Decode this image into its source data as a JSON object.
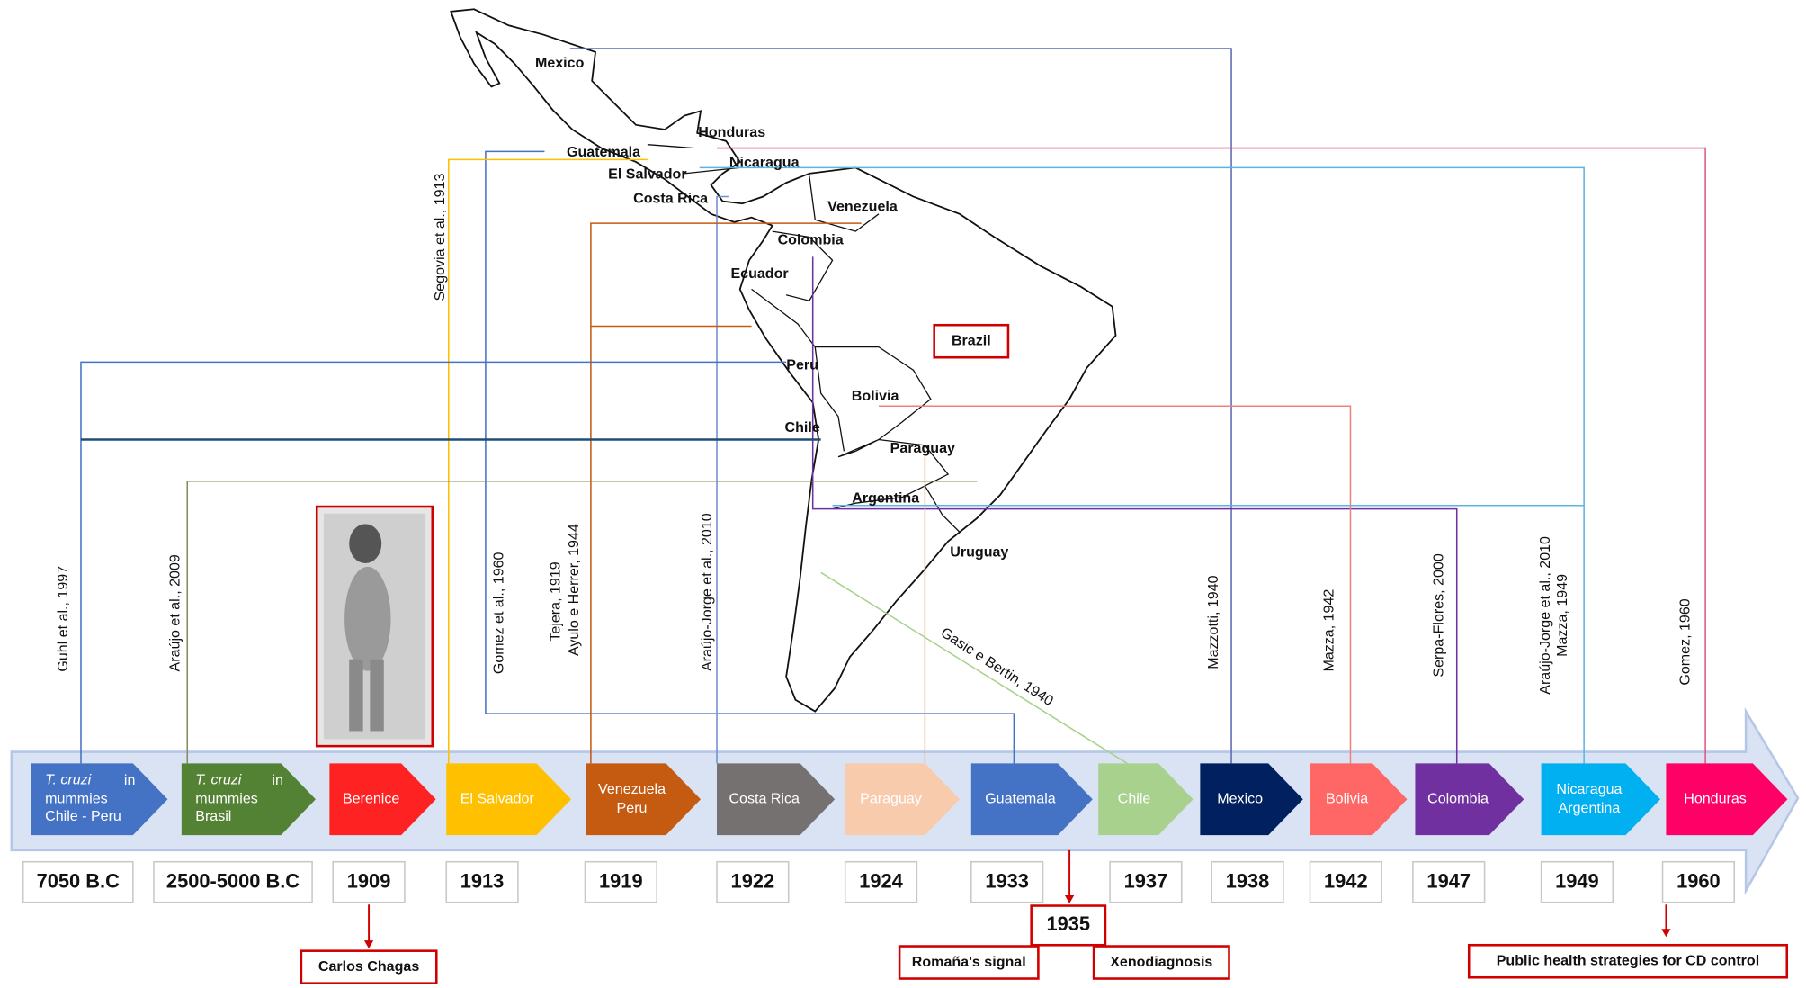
{
  "countries": [
    "Mexico",
    "Honduras",
    "Guatemala",
    "Nicaragua",
    "El Salvador",
    "Costa Rica",
    "Venezuela",
    "Colombia",
    "Ecuador",
    "Brazil",
    "Peru",
    "Bolivia",
    "Chile",
    "Paraguay",
    "Argentina",
    "Uruguay"
  ],
  "events": [
    {
      "organism": "T. cruzi",
      "label": [
        "in",
        "mummies",
        "Chile - Peru"
      ],
      "year": "7050 B.C",
      "citations": [
        "Guhl et al., 1997"
      ],
      "color": "#4472c4"
    },
    {
      "organism": "T. cruzi",
      "label": [
        "in",
        "mummies",
        "Brasil"
      ],
      "year": "2500-5000 B.C",
      "citations": [
        "Araújo et al., 2009"
      ],
      "color": "#548235"
    },
    {
      "label": [
        "Berenice"
      ],
      "year": "1909",
      "citations": [],
      "color": "#ff2222",
      "note": "Carlos Chagas"
    },
    {
      "label": [
        "El Salvador"
      ],
      "year": "1913",
      "citations": [
        "Segovia et al., 1913"
      ],
      "color": "#ffc000"
    },
    {
      "label": [
        "Venezuela",
        "Peru"
      ],
      "year": "1919",
      "citations": [
        "Tejera, 1919",
        "Ayulo e Herrer, 1944"
      ],
      "color": "#c55a11"
    },
    {
      "label": [
        "Costa Rica"
      ],
      "year": "1922",
      "citations": [
        "Araújo-Jorge et al., 2010"
      ],
      "color": "#767171"
    },
    {
      "label": [
        "Paraguay"
      ],
      "year": "1924",
      "citations": [],
      "color": "#f8cbad"
    },
    {
      "label": [
        "Guatemala"
      ],
      "year": "1933",
      "citations": [
        "Gomez et al., 1960"
      ],
      "color": "#4472c4",
      "follow_up": {
        "year": "1935",
        "notes": [
          "Romaña's signal",
          "Xenodiagnosis"
        ]
      }
    },
    {
      "label": [
        "Chile"
      ],
      "year": "1937",
      "citations": [
        "Gasic e Bertin, 1940"
      ],
      "color": "#a9d18e"
    },
    {
      "label": [
        "Mexico"
      ],
      "year": "1938",
      "citations": [
        "Mazzotti, 1940"
      ],
      "color": "#002060"
    },
    {
      "label": [
        "Bolivia"
      ],
      "year": "1942",
      "citations": [
        "Mazza, 1942"
      ],
      "color": "#ff6666"
    },
    {
      "label": [
        "Colombia"
      ],
      "year": "1947",
      "citations": [
        "Serpa-Flores, 2000"
      ],
      "color": "#7030a0"
    },
    {
      "label": [
        "Nicaragua",
        "Argentina"
      ],
      "year": "1949",
      "citations": [
        "Araújo-Jorge et al., 2010",
        "Mazza, 1949"
      ],
      "color": "#00b0f0"
    },
    {
      "label": [
        "Honduras"
      ],
      "year": "1960",
      "citations": [
        "Gomez, 1960"
      ],
      "color": "#ff0066",
      "note": "Public health strategies for CD control"
    }
  ]
}
